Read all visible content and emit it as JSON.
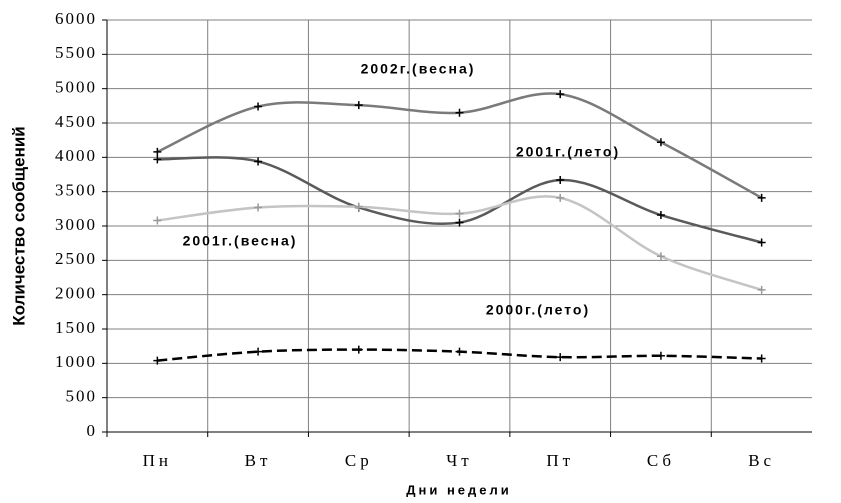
{
  "chart_data": {
    "type": "line",
    "x_label": "Дни недели",
    "y_label": "Количество сообщений",
    "categories": [
      "Пн",
      "Вт",
      "Ср",
      "Чт",
      "Пт",
      "Сб",
      "Вс"
    ],
    "series": [
      {
        "name": "2002г.(весна)",
        "color": "#7a7a7a",
        "line_style": "solid",
        "values": [
          4080,
          4740,
          4760,
          4650,
          4920,
          4220,
          3410
        ]
      },
      {
        "name": "2001г.(лето)",
        "color": "#5a5a5a",
        "line_style": "solid",
        "values": [
          3970,
          3940,
          3270,
          3050,
          3670,
          3160,
          2760
        ]
      },
      {
        "name": "2001г.(весна)",
        "color": "#c4c4c4",
        "line_style": "solid",
        "values": [
          3080,
          3270,
          3280,
          3180,
          3410,
          2560,
          2070
        ]
      },
      {
        "name": "2000г.(лето)",
        "color": "#000000",
        "line_style": "dashed",
        "values": [
          1040,
          1170,
          1200,
          1170,
          1090,
          1110,
          1070
        ]
      }
    ],
    "ylim": [
      0,
      6000
    ],
    "yticks": [
      0,
      500,
      1000,
      1500,
      2000,
      2500,
      3000,
      3500,
      4000,
      4500,
      5000,
      5500,
      6000
    ],
    "grid": true
  }
}
